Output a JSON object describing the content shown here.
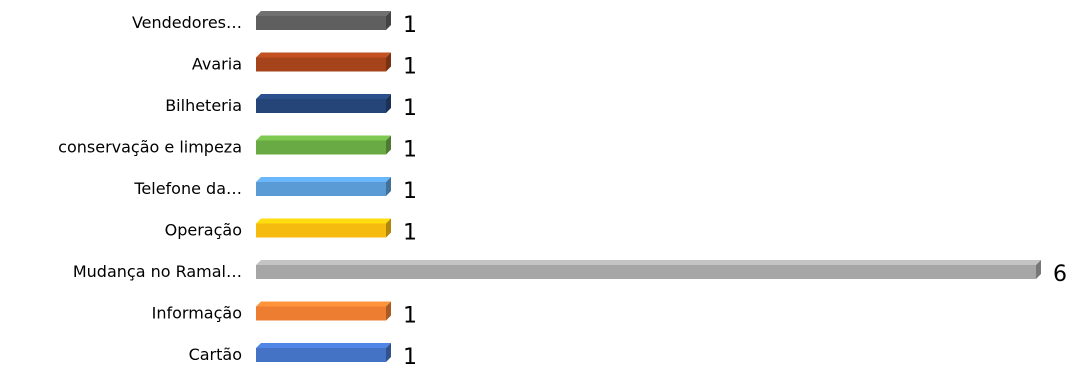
{
  "chart_data": {
    "type": "bar",
    "orientation": "horizontal",
    "style": "3d",
    "title": "",
    "xlabel": "",
    "ylabel": "",
    "xlim": [
      0,
      6
    ],
    "grid": false,
    "legend": "none",
    "categories": [
      "Vendedores…",
      "Avaria",
      "Bilheteria",
      "conservação e limpeza",
      "Telefone da…",
      "Operação",
      "Mudança no Ramal…",
      "Informação",
      "Cartão"
    ],
    "values": [
      1,
      1,
      1,
      1,
      1,
      1,
      6,
      1,
      1
    ],
    "colors": [
      "#5f5f5f",
      "#a5441b",
      "#254478",
      "#6aaa45",
      "#5b9bd5",
      "#f5bb0e",
      "#a6a6a6",
      "#ed7d31",
      "#4472c4"
    ]
  }
}
